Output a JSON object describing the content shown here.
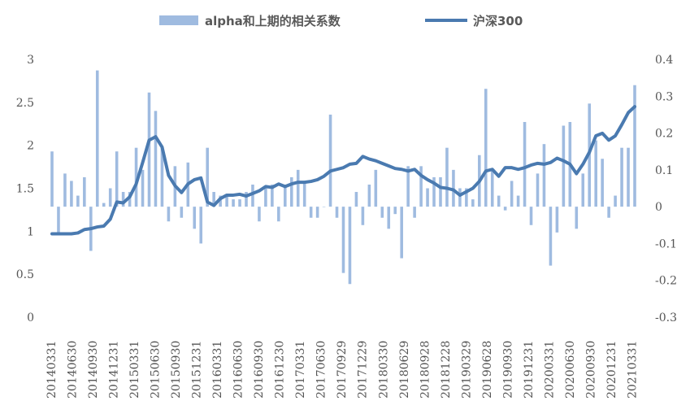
{
  "legend": {
    "bar_label": "alpha和上期的相关系数",
    "line_label": "沪深300"
  },
  "colors": {
    "bar": "#9fbbe0",
    "line": "#4a7ab0"
  },
  "chart_data": {
    "type": "bar+line",
    "legend_position": "top",
    "grid": false,
    "left_axis": {
      "min": 0,
      "max": 3,
      "ticks": [
        "0",
        "0.5",
        "1",
        "1.5",
        "2",
        "2.5",
        "3"
      ]
    },
    "right_axis": {
      "min": -0.3,
      "max": 0.4,
      "ticks": [
        "-0.3",
        "-0.2",
        "-0.1",
        "0",
        "0.1",
        "0.2",
        "0.3",
        "0.4"
      ]
    },
    "x_tick_labels": [
      "20140331",
      "20140630",
      "20140930",
      "20141231",
      "20150331",
      "20150630",
      "20150930",
      "20151231",
      "20160331",
      "20160630",
      "20160930",
      "20161230",
      "20170331",
      "20170630",
      "20170929",
      "20171229",
      "20180330",
      "20180629",
      "20180928",
      "20181228",
      "20190329",
      "20190628",
      "20190930",
      "20191231",
      "20200331",
      "20200630",
      "20200930",
      "20201231",
      "20210331"
    ],
    "series": [
      {
        "name": "alpha和上期的相关系数",
        "type": "bar",
        "axis": "right",
        "values": [
          0.15,
          -0.07,
          0.09,
          0.07,
          0.03,
          0.08,
          -0.12,
          0.37,
          0.01,
          0.05,
          0.15,
          0.04,
          0.04,
          0.16,
          0.1,
          0.31,
          0.26,
          0.16,
          -0.04,
          0.11,
          -0.03,
          0.12,
          -0.06,
          -0.1,
          0.16,
          0.04,
          0.03,
          0.03,
          0.02,
          0.02,
          0.04,
          0.06,
          -0.04,
          0.05,
          0.06,
          -0.04,
          0.06,
          0.08,
          0.1,
          0.07,
          -0.03,
          -0.03,
          0.0,
          0.25,
          -0.03,
          -0.18,
          -0.21,
          0.04,
          -0.05,
          0.06,
          0.1,
          -0.03,
          -0.06,
          -0.02,
          -0.14,
          0.11,
          -0.03,
          0.11,
          0.05,
          0.08,
          0.08,
          0.16,
          0.1,
          0.05,
          0.05,
          0.02,
          0.14,
          0.32,
          0.1,
          0.03,
          -0.01,
          0.07,
          0.03,
          0.23,
          -0.05,
          0.09,
          0.17,
          -0.16,
          -0.07,
          0.22,
          0.23,
          -0.06,
          0.09,
          0.28,
          0.18,
          0.13,
          -0.03,
          0.03,
          0.16,
          0.16,
          0.33
        ]
      },
      {
        "name": "沪深300",
        "type": "line",
        "axis": "left",
        "values": [
          0.97,
          0.97,
          0.97,
          0.97,
          0.98,
          1.02,
          1.03,
          1.05,
          1.06,
          1.14,
          1.34,
          1.33,
          1.4,
          1.55,
          1.8,
          2.06,
          2.1,
          1.98,
          1.65,
          1.53,
          1.45,
          1.55,
          1.6,
          1.62,
          1.34,
          1.3,
          1.38,
          1.42,
          1.42,
          1.43,
          1.41,
          1.44,
          1.47,
          1.52,
          1.51,
          1.55,
          1.52,
          1.55,
          1.57,
          1.57,
          1.58,
          1.6,
          1.64,
          1.7,
          1.72,
          1.74,
          1.78,
          1.79,
          1.87,
          1.84,
          1.82,
          1.79,
          1.76,
          1.73,
          1.72,
          1.7,
          1.72,
          1.65,
          1.6,
          1.56,
          1.51,
          1.5,
          1.48,
          1.42,
          1.46,
          1.5,
          1.58,
          1.7,
          1.72,
          1.64,
          1.74,
          1.74,
          1.72,
          1.74,
          1.77,
          1.79,
          1.78,
          1.8,
          1.85,
          1.82,
          1.78,
          1.67,
          1.78,
          1.92,
          2.11,
          2.14,
          2.06,
          2.11,
          2.24,
          2.38,
          2.45
        ]
      }
    ]
  }
}
